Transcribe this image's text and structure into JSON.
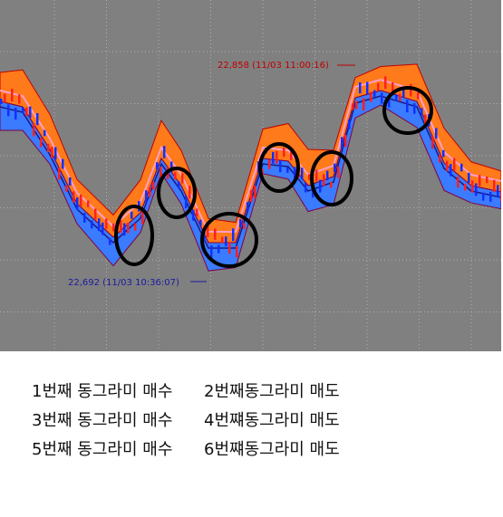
{
  "chart": {
    "annotations": [
      {
        "label": "22,858 (11/03 11:00:16)",
        "color": "#c00000"
      },
      {
        "label": "22,692 (11/03 10:36:07)",
        "color": "#1a1aa0"
      }
    ]
  },
  "notes": [
    [
      "1번째 동그라미 매수",
      "2번째동그라미 매도"
    ],
    [
      "3번째 동그라미 매수",
      "4번쨰동그라미 매도"
    ],
    [
      "5번째 동그라미 매수",
      "6번쨰동그라미 매도"
    ]
  ]
}
